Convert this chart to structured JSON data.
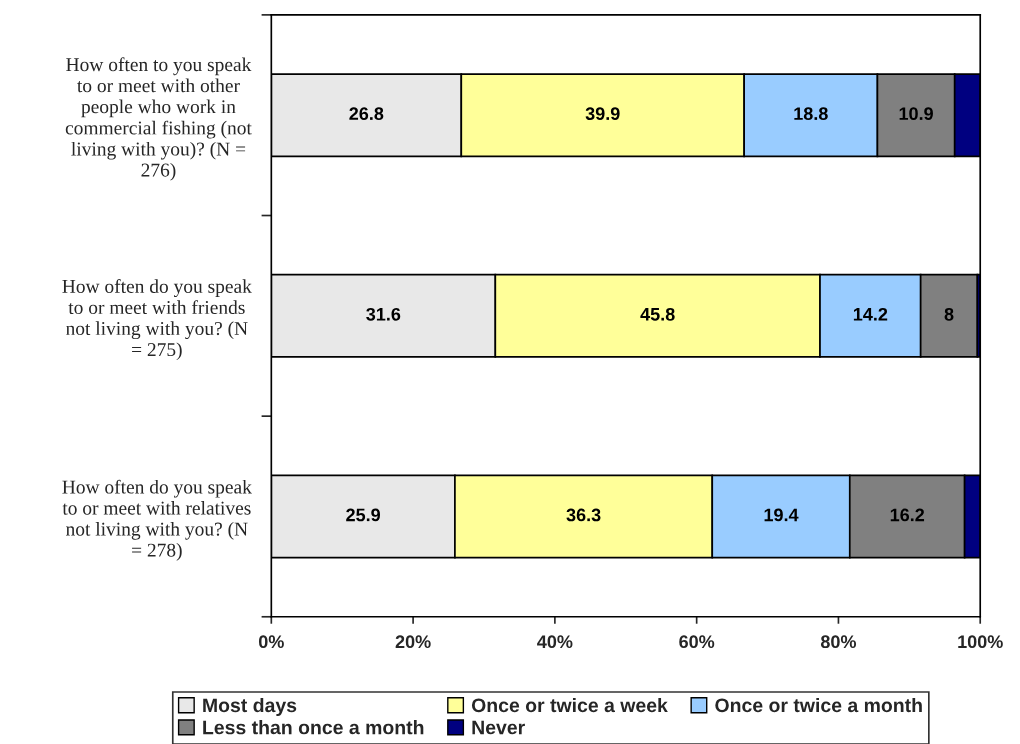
{
  "chart_data": {
    "type": "bar",
    "orientation": "horizontal",
    "stacked": true,
    "categories": [
      "How often to you speak\nto or meet with other\npeople who work in\ncommercial fishing (not\nliving with you)? (N =\n276)",
      "How often do you speak\nto or meet with friends\nnot living with you? (N\n= 275)",
      "How often do you speak\nto or meet with relatives\nnot living with you? (N\n= 278)"
    ],
    "series": [
      {
        "name": "Most days",
        "color": "#e8e8e8",
        "values": [
          26.8,
          31.6,
          25.9
        ],
        "value_labels": [
          "26.8",
          "31.6",
          "25.9"
        ]
      },
      {
        "name": "Once or twice a week",
        "color": "#ffff99",
        "values": [
          39.9,
          45.8,
          36.3
        ],
        "value_labels": [
          "39.9",
          "45.8",
          "36.3"
        ]
      },
      {
        "name": "Once or twice a month",
        "color": "#99ccff",
        "values": [
          18.8,
          14.2,
          19.4
        ],
        "value_labels": [
          "18.8",
          "14.2",
          "19.4"
        ]
      },
      {
        "name": "Less than once a month",
        "color": "#808080",
        "values": [
          10.9,
          8,
          16.2
        ],
        "value_labels": [
          "10.9",
          "8",
          "16.2"
        ]
      },
      {
        "name": "Never",
        "color": "#000080",
        "values": [
          3.6,
          0.4,
          2.2
        ],
        "value_labels": [
          null,
          null,
          null
        ]
      }
    ],
    "xlim": [
      0,
      100
    ],
    "xticks": [
      {
        "value": 0,
        "label": "0%"
      },
      {
        "value": 20,
        "label": "20%"
      },
      {
        "value": 40,
        "label": "40%"
      },
      {
        "value": 60,
        "label": "60%"
      },
      {
        "value": 80,
        "label": "80%"
      },
      {
        "value": 100,
        "label": "100%"
      }
    ],
    "grid": false,
    "legend": "bottom"
  }
}
